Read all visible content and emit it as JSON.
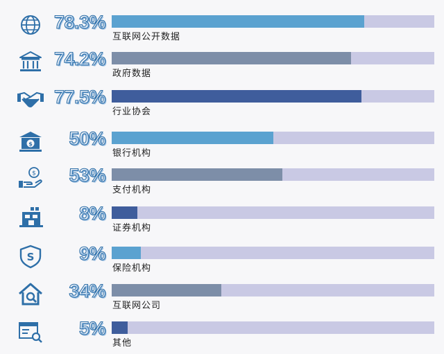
{
  "colors": {
    "track": "#c9c9e4",
    "icon": "#2e6fa8",
    "fill_light": "#5ba2d0",
    "fill_gray": "#7d8ea8",
    "fill_dark": "#3f5d9c"
  },
  "chart_data": {
    "type": "bar",
    "orientation": "horizontal",
    "title": "",
    "xlabel": "",
    "ylabel": "",
    "xlim": [
      0,
      100
    ],
    "grid": false,
    "legend": "none",
    "categories": [
      "互联网公开数据",
      "政府数据",
      "行业协会",
      "银行机构",
      "支付机构",
      "证券机构",
      "保险机构",
      "互联网公司",
      "其他"
    ],
    "values": [
      78.3,
      74.2,
      77.5,
      50,
      53,
      8,
      9,
      34,
      5
    ],
    "value_labels": [
      "78.3%",
      "74.2%",
      "77.5%",
      "50%",
      "53%",
      "8%",
      "9%",
      "34%",
      "5%"
    ],
    "icons": [
      "globe-icon",
      "government-building-icon",
      "handshake-icon",
      "bank-icon",
      "money-hand-icon",
      "securities-building-icon",
      "insurance-shield-icon",
      "internet-company-house-icon",
      "other-search-icon"
    ],
    "bar_colors": [
      "#5ba2d0",
      "#7d8ea8",
      "#3f5d9c",
      "#5ba2d0",
      "#7d8ea8",
      "#3f5d9c",
      "#5ba2d0",
      "#7d8ea8",
      "#3f5d9c"
    ]
  }
}
